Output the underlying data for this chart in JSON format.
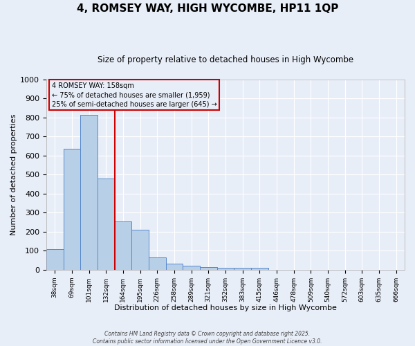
{
  "title": "4, ROMSEY WAY, HIGH WYCOMBE, HP11 1QP",
  "subtitle": "Size of property relative to detached houses in High Wycombe",
  "xlabel": "Distribution of detached houses by size in High Wycombe",
  "ylabel": "Number of detached properties",
  "bins": [
    "38sqm",
    "69sqm",
    "101sqm",
    "132sqm",
    "164sqm",
    "195sqm",
    "226sqm",
    "258sqm",
    "289sqm",
    "321sqm",
    "352sqm",
    "383sqm",
    "415sqm",
    "446sqm",
    "478sqm",
    "509sqm",
    "540sqm",
    "572sqm",
    "603sqm",
    "635sqm",
    "666sqm"
  ],
  "values": [
    110,
    635,
    815,
    480,
    255,
    210,
    65,
    30,
    20,
    15,
    10,
    10,
    10,
    0,
    0,
    0,
    0,
    0,
    0,
    0,
    0
  ],
  "bar_color": "#b8cfe8",
  "bar_edge_color": "#5588cc",
  "property_line_bin_index": 4,
  "property_line_color": "#cc0000",
  "annotation_title": "4 ROMSEY WAY: 158sqm",
  "annotation_line1": "← 75% of detached houses are smaller (1,959)",
  "annotation_line2": "25% of semi-detached houses are larger (645) →",
  "annotation_box_color": "#cc0000",
  "ylim": [
    0,
    1000
  ],
  "yticks": [
    0,
    100,
    200,
    300,
    400,
    500,
    600,
    700,
    800,
    900,
    1000
  ],
  "background_color": "#e8eef8",
  "grid_color": "#ffffff",
  "title_fontsize": 11,
  "subtitle_fontsize": 8.5,
  "footer": "Contains HM Land Registry data © Crown copyright and database right 2025.\nContains public sector information licensed under the Open Government Licence v3.0."
}
